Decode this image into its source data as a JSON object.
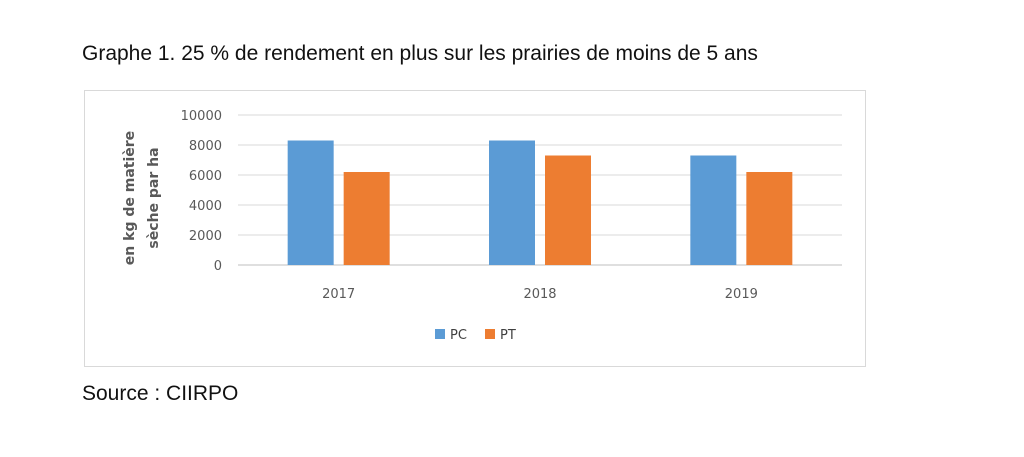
{
  "caption": "Graphe 1. 25 % de rendement en plus sur les prairies de moins de 5 ans",
  "source": "Source : CIIRPO",
  "chart_data": {
    "type": "bar",
    "title": "",
    "xlabel": "",
    "ylabel_lines": [
      "en kg de matière",
      "sèche par ha"
    ],
    "categories": [
      "2017",
      "2018",
      "2019"
    ],
    "series": [
      {
        "name": "PC",
        "color": "#5b9bd5",
        "values": [
          8300,
          8300,
          7300
        ]
      },
      {
        "name": "PT",
        "color": "#ed7d31",
        "values": [
          6200,
          7300,
          6200
        ]
      }
    ],
    "ylim": [
      0,
      10000
    ],
    "yticks": [
      0,
      2000,
      4000,
      6000,
      8000,
      10000
    ],
    "grid": true,
    "legend": "bottom-center"
  }
}
